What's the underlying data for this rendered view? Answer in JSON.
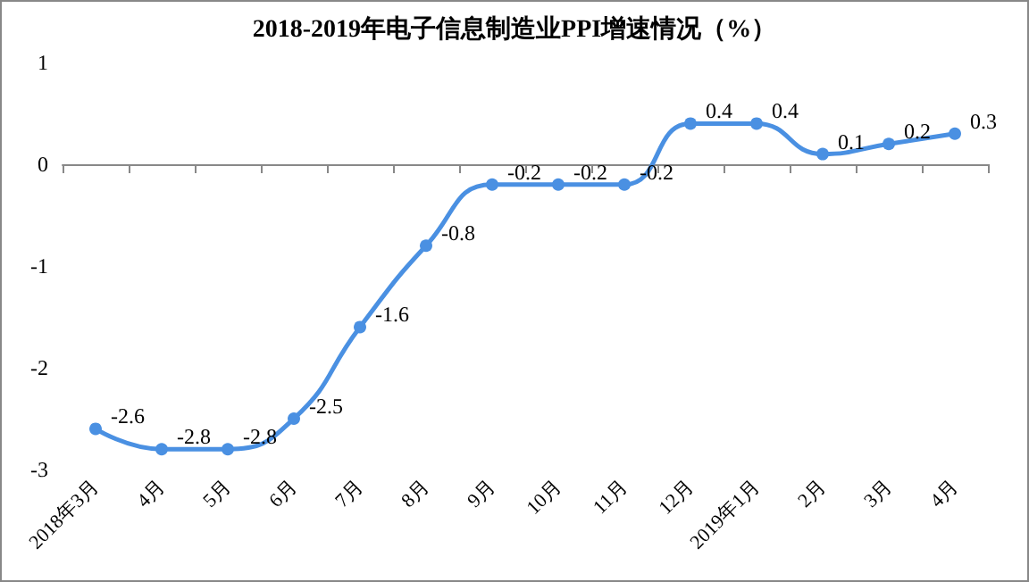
{
  "chart_data": {
    "type": "line",
    "title": "2018-2019年电子信息制造业PPI增速情况（%）",
    "categories": [
      "2018年3月",
      "4月",
      "5月",
      "6月",
      "7月",
      "8月",
      "9月",
      "10月",
      "11月",
      "12月",
      "2019年1月",
      "2月",
      "3月",
      "4月"
    ],
    "series": [
      {
        "color": "#4a90e2",
        "values": [
          -2.6,
          -2.8,
          -2.8,
          -2.5,
          -1.6,
          -0.8,
          -0.2,
          -0.2,
          -0.2,
          0.4,
          0.4,
          0.1,
          0.2,
          0.3
        ]
      }
    ],
    "ylim": [
      -3,
      1
    ],
    "yticks": [
      -3,
      -2,
      -1,
      0,
      1
    ],
    "marker": "circle",
    "line_style": "solid",
    "data_labels": true
  }
}
